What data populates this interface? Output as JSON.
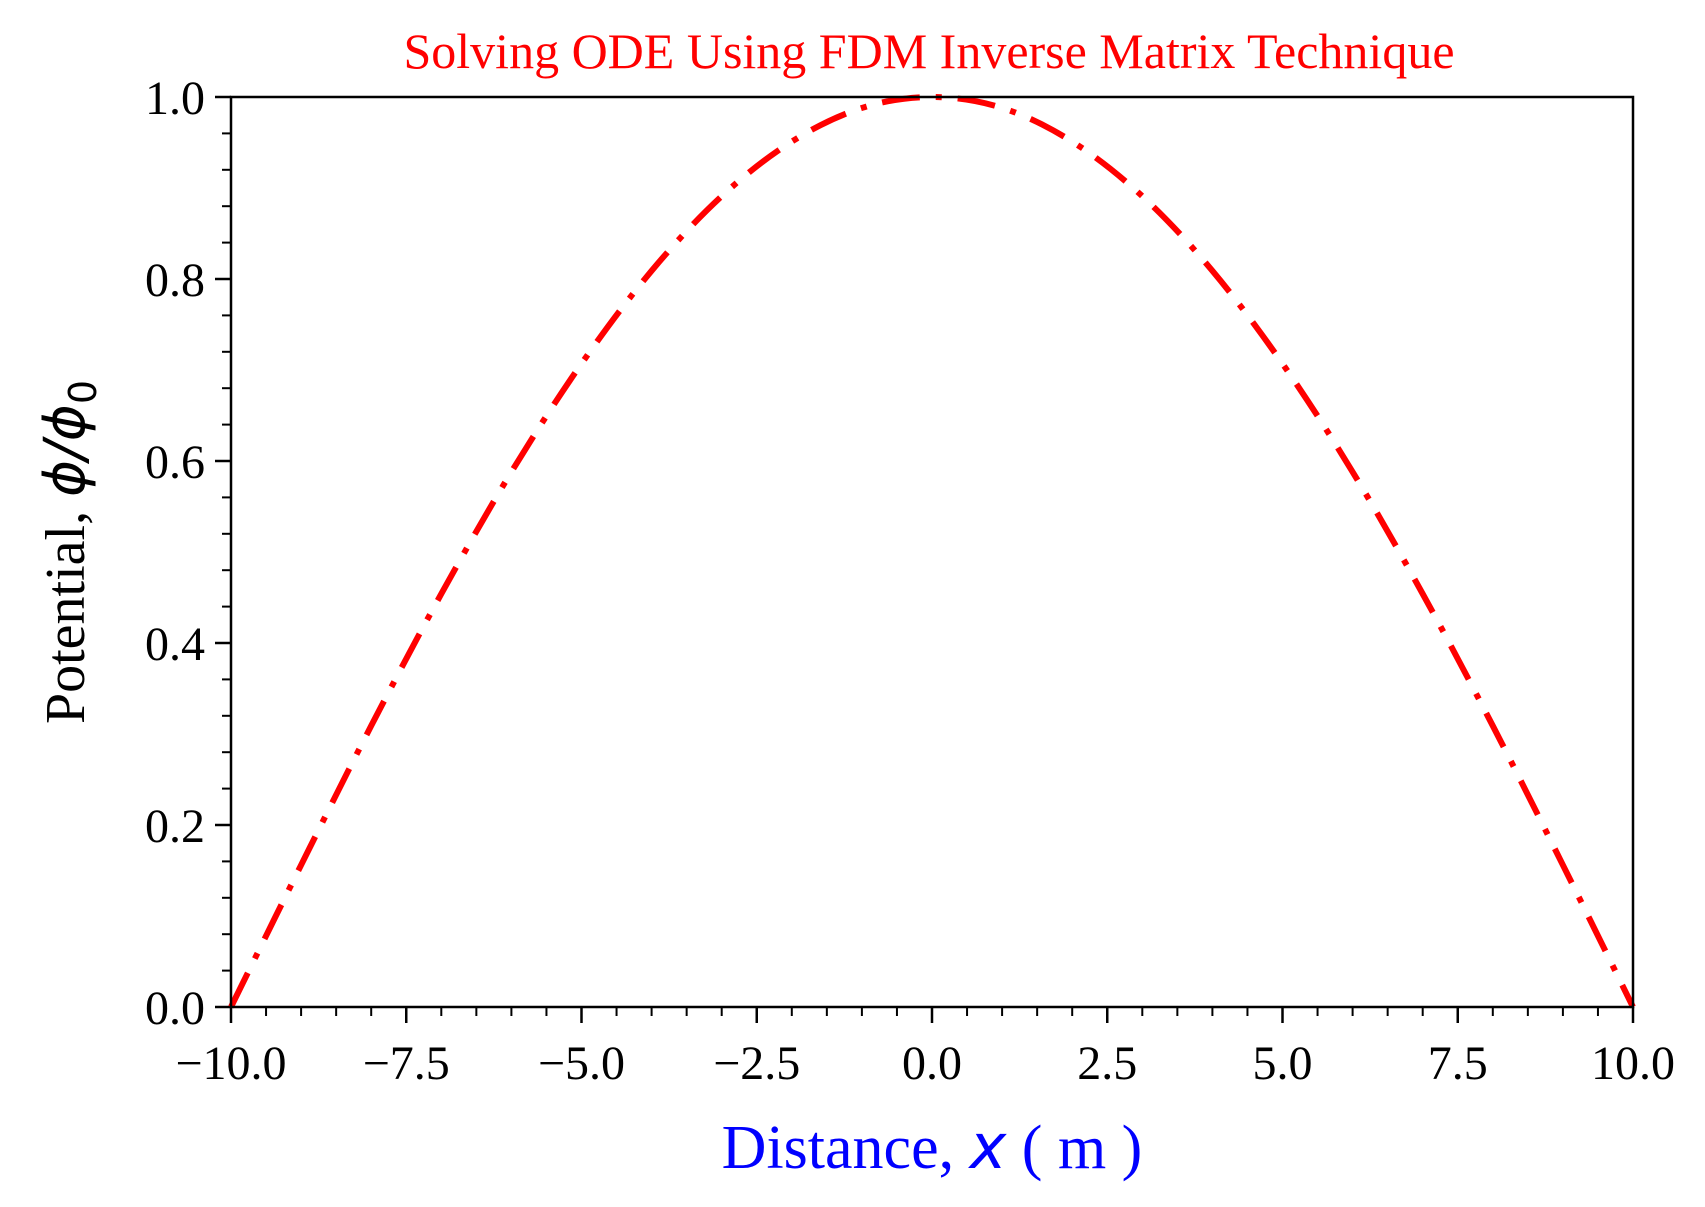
{
  "chart_data": {
    "type": "line",
    "title": "Solving ODE Using FDM Inverse Matrix Technique",
    "xlabel": {
      "prefix": "Distance, ",
      "variable": "x",
      "suffix": " ( m )"
    },
    "ylabel": {
      "prefix": "Potential, ",
      "variable": "ϕ/ϕ",
      "subscript": "0"
    },
    "xlim": [
      -10,
      10
    ],
    "ylim": [
      0,
      1
    ],
    "x_ticks": [
      -10,
      -7.5,
      -5,
      -2.5,
      0,
      2.5,
      5,
      7.5,
      10
    ],
    "x_tick_labels": [
      "−10.0",
      "−7.5",
      "−5.0",
      "−2.5",
      "0.0",
      "2.5",
      "5.0",
      "7.5",
      "10.0"
    ],
    "y_ticks": [
      0,
      0.2,
      0.4,
      0.6,
      0.8,
      1.0
    ],
    "y_tick_labels": [
      "0.0",
      "0.2",
      "0.4",
      "0.6",
      "0.8",
      "1.0"
    ],
    "grid": false,
    "series": [
      {
        "line_style": "dash-dot",
        "color": "#ff0000",
        "x": [
          -10,
          -9,
          -8,
          -7,
          -6,
          -5,
          -4,
          -3,
          -2,
          -1,
          0,
          1,
          2,
          3,
          4,
          5,
          6,
          7,
          8,
          9,
          10
        ],
        "y": [
          0.0,
          0.156,
          0.309,
          0.454,
          0.588,
          0.707,
          0.809,
          0.891,
          0.951,
          0.988,
          1.0,
          0.988,
          0.951,
          0.891,
          0.809,
          0.707,
          0.588,
          0.454,
          0.309,
          0.156,
          0.0
        ]
      }
    ],
    "colors": {
      "title": "#ff0000",
      "xlabel": "#0000ff",
      "ylabel": "#000000",
      "axes": "#000000"
    }
  }
}
